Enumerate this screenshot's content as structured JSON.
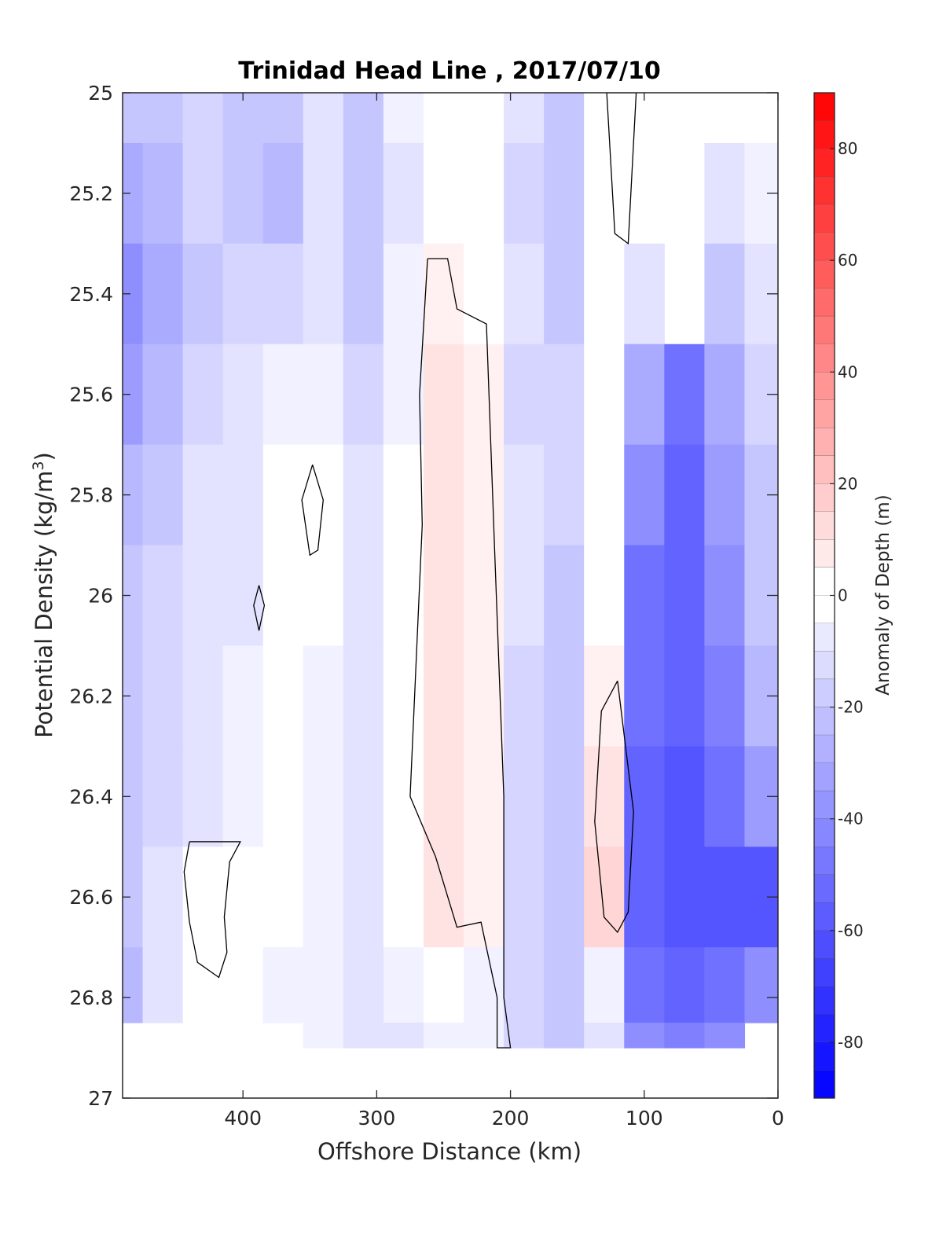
{
  "chart_data": {
    "type": "heatmap",
    "title": "Trinidad Head Line , 2017/07/10",
    "xlabel": "Offshore Distance (km)",
    "ylabel_main": "Potential Density (kg/m",
    "ylabel_sup": "3",
    "ylabel_close": ")",
    "xlim": [
      490,
      0
    ],
    "ylim": [
      25.0,
      27.0
    ],
    "x_reversed": true,
    "y_reversed": true,
    "x_ticks": [
      400,
      300,
      200,
      100,
      0
    ],
    "x_tick_labels": [
      "400",
      "300",
      "200",
      "100",
      "0"
    ],
    "y_ticks": [
      25.0,
      25.2,
      25.4,
      25.6,
      25.8,
      26.0,
      26.2,
      26.4,
      26.6,
      26.8,
      27.0
    ],
    "y_tick_labels": [
      "25",
      "25.2",
      "25.4",
      "25.6",
      "25.8",
      "26",
      "26.2",
      "26.4",
      "26.6",
      "26.8",
      "27"
    ],
    "colorbar": {
      "label": "Anomaly of Depth (m)",
      "range": [
        -90,
        90
      ],
      "step": 5,
      "colormap": "blue-white-red",
      "ticks": [
        80,
        60,
        40,
        20,
        0,
        -20,
        -40,
        -60,
        -80
      ],
      "tick_labels": [
        "80",
        "60",
        "40",
        "20",
        "0",
        "-20",
        "-40",
        "-60",
        "-80"
      ]
    },
    "grid": {
      "x": [
        490,
        460,
        430,
        400,
        370,
        340,
        310,
        280,
        250,
        220,
        190,
        160,
        130,
        100,
        70,
        40,
        10
      ],
      "y": [
        25.0,
        25.2,
        25.4,
        25.6,
        25.8,
        26.0,
        26.2,
        26.4,
        26.6,
        26.8,
        26.9
      ],
      "values": [
        [
          -22,
          -22,
          -14,
          -20,
          -18,
          -10,
          -22,
          -6,
          2,
          -2,
          -10,
          -20,
          0,
          null,
          null,
          null,
          null
        ],
        [
          -32,
          -24,
          -16,
          -22,
          -24,
          -12,
          -22,
          -8,
          0,
          -2,
          -14,
          -20,
          0,
          null,
          null,
          -10,
          -6
        ],
        [
          -42,
          -32,
          -18,
          -16,
          -16,
          -8,
          -18,
          -6,
          6,
          2,
          -12,
          -18,
          0,
          -12,
          null,
          -22,
          -10
        ],
        [
          -36,
          -26,
          -14,
          -10,
          -6,
          -4,
          -14,
          -4,
          10,
          4,
          -14,
          -16,
          0,
          -30,
          -52,
          -30,
          -14
        ],
        [
          -24,
          -18,
          -12,
          -8,
          -2,
          -2,
          -12,
          0,
          12,
          6,
          -12,
          -16,
          2,
          -40,
          -54,
          -36,
          -18
        ],
        [
          -20,
          -16,
          -12,
          -8,
          -2,
          -2,
          -8,
          0,
          12,
          6,
          -12,
          -18,
          0,
          -48,
          -56,
          -40,
          -22
        ],
        [
          -18,
          -14,
          -10,
          -6,
          -2,
          -4,
          -10,
          0,
          10,
          4,
          -14,
          -20,
          6,
          -52,
          -56,
          -44,
          -26
        ],
        [
          -20,
          -14,
          -8,
          -4,
          -2,
          -6,
          -12,
          -2,
          10,
          6,
          -14,
          -20,
          10,
          -56,
          -58,
          -50,
          -34
        ],
        [
          -22,
          -12,
          2,
          0,
          -2,
          -6,
          -10,
          -2,
          8,
          4,
          -14,
          -20,
          14,
          -56,
          -58,
          -60,
          -62
        ],
        [
          -24,
          -10,
          0,
          -2,
          -4,
          -4,
          -8,
          -6,
          -2,
          -4,
          -14,
          -20,
          -6,
          -50,
          -54,
          -52,
          -40
        ],
        [
          null,
          null,
          null,
          null,
          null,
          -6,
          -10,
          -8,
          -6,
          -6,
          -14,
          -20,
          -12,
          -40,
          -44,
          -38,
          null
        ]
      ]
    },
    "zero_contours": [
      [
        [
          262,
          25.33
        ],
        [
          247,
          25.33
        ],
        [
          240,
          25.43
        ],
        [
          218,
          25.46
        ],
        [
          212,
          25.9
        ],
        [
          205,
          26.4
        ],
        [
          205,
          26.8
        ],
        [
          200,
          26.9
        ],
        [
          210,
          26.9
        ],
        [
          210,
          26.8
        ],
        [
          222,
          26.65
        ],
        [
          240,
          26.66
        ],
        [
          256,
          26.52
        ],
        [
          275,
          26.4
        ],
        [
          266,
          25.86
        ],
        [
          268,
          25.6
        ],
        [
          262,
          25.33
        ]
      ],
      [
        [
          128,
          25.0
        ],
        [
          106,
          25.0
        ],
        [
          112,
          25.3
        ],
        [
          122,
          25.28
        ],
        [
          128,
          25.0
        ]
      ],
      [
        [
          120,
          26.17
        ],
        [
          108,
          26.43
        ],
        [
          112,
          26.63
        ],
        [
          120,
          26.67
        ],
        [
          130,
          26.64
        ],
        [
          137,
          26.45
        ],
        [
          132,
          26.23
        ],
        [
          120,
          26.17
        ]
      ],
      [
        [
          348,
          25.74
        ],
        [
          340,
          25.81
        ],
        [
          344,
          25.91
        ],
        [
          350,
          25.92
        ],
        [
          356,
          25.81
        ],
        [
          348,
          25.74
        ]
      ],
      [
        [
          388,
          25.98
        ],
        [
          384,
          26.02
        ],
        [
          388,
          26.07
        ],
        [
          392,
          26.02
        ],
        [
          388,
          25.98
        ]
      ],
      [
        [
          440,
          26.49
        ],
        [
          402,
          26.49
        ],
        [
          410,
          26.53
        ],
        [
          414,
          26.64
        ],
        [
          412,
          26.71
        ],
        [
          418,
          26.76
        ],
        [
          434,
          26.73
        ],
        [
          440,
          26.65
        ],
        [
          444,
          26.55
        ],
        [
          440,
          26.49
        ]
      ]
    ]
  }
}
